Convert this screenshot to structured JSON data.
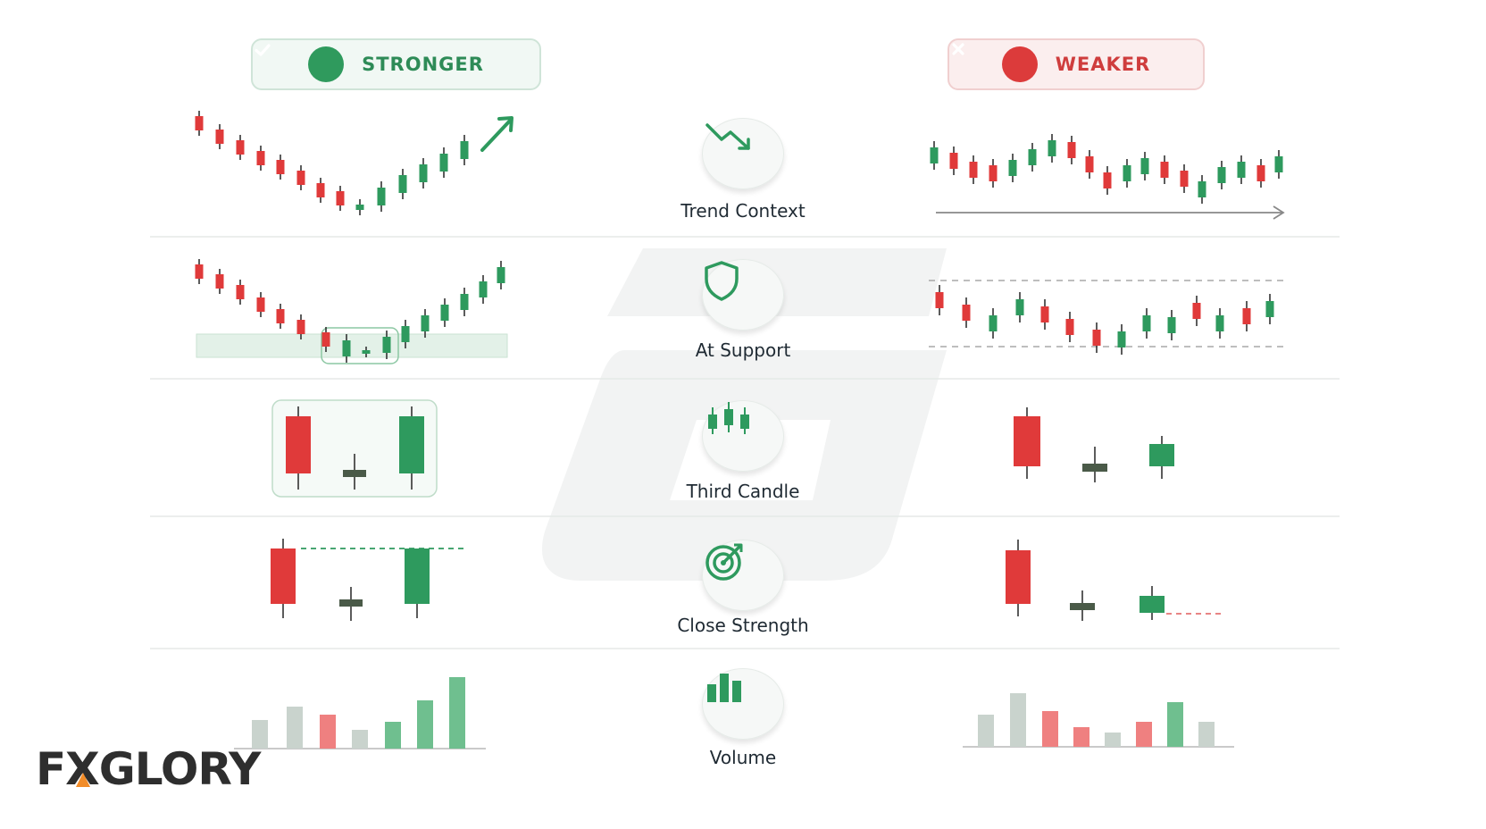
{
  "headers": {
    "stronger": "STRONGER",
    "weaker": "WEAKER"
  },
  "criteria": [
    {
      "label": "Trend Context",
      "icon": "trend-down-icon"
    },
    {
      "label": "At Support",
      "icon": "shield-icon"
    },
    {
      "label": "Third Candle",
      "icon": "candles-icon"
    },
    {
      "label": "Close Strength",
      "icon": "target-icon"
    },
    {
      "label": "Volume",
      "icon": "bar-chart-icon"
    }
  ],
  "logo": {
    "text": "FXGLORY",
    "part1": "F",
    "part2": "X",
    "part3": "GLORY"
  },
  "colors": {
    "bull": "#2e9a5e",
    "bear": "#e03a3a",
    "doji": "#4a5a48",
    "bull_light": "#6fbf8f",
    "bear_light": "#ef8080",
    "neutral_light": "#c9d3cd",
    "grid": "#e5e9e7",
    "watermark": "#f2f3f3",
    "logo_accent": "#f28c28"
  }
}
